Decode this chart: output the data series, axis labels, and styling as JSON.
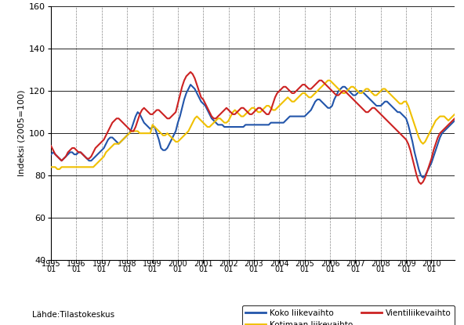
{
  "ylabel": "Indeksi (2005=100)",
  "source": "Lähde:Tilastokeskus",
  "ylim": [
    40,
    160
  ],
  "yticks": [
    40,
    60,
    80,
    100,
    120,
    140,
    160
  ],
  "colors_koko": "#2255aa",
  "colors_kotimaan": "#f0c000",
  "colors_vienti": "#cc2222",
  "linewidth": 1.5,
  "legend_koko": "Koko liikevaihto",
  "legend_kotimaan": "Kotimaan liikevaihto",
  "legend_vienti": "Vientiliikevaihto",
  "koko": [
    90,
    91,
    90,
    89,
    88,
    87,
    88,
    89,
    90,
    91,
    91,
    90,
    90,
    91,
    91,
    90,
    89,
    88,
    87,
    87,
    88,
    89,
    90,
    91,
    92,
    93,
    95,
    97,
    98,
    98,
    97,
    96,
    95,
    96,
    97,
    98,
    99,
    100,
    102,
    105,
    108,
    110,
    109,
    107,
    105,
    104,
    103,
    102,
    103,
    103,
    100,
    97,
    93,
    92,
    92,
    93,
    95,
    97,
    99,
    101,
    105,
    108,
    112,
    116,
    119,
    121,
    123,
    122,
    121,
    119,
    117,
    115,
    114,
    113,
    111,
    109,
    107,
    106,
    105,
    104,
    104,
    104,
    103,
    103,
    103,
    103,
    103,
    103,
    103,
    103,
    103,
    103,
    104,
    104,
    104,
    104,
    104,
    104,
    104,
    104,
    104,
    104,
    104,
    104,
    105,
    105,
    105,
    105,
    105,
    105,
    105,
    106,
    107,
    108,
    108,
    108,
    108,
    108,
    108,
    108,
    108,
    109,
    110,
    111,
    113,
    115,
    116,
    116,
    115,
    114,
    113,
    112,
    112,
    113,
    116,
    118,
    120,
    121,
    122,
    122,
    121,
    120,
    119,
    118,
    118,
    119,
    120,
    120,
    119,
    118,
    117,
    116,
    115,
    114,
    113,
    113,
    113,
    114,
    115,
    115,
    114,
    113,
    112,
    111,
    110,
    110,
    109,
    108,
    107,
    104,
    100,
    96,
    91,
    87,
    83,
    80,
    79,
    80,
    82,
    84,
    86,
    89,
    92,
    95,
    98,
    100,
    101,
    102,
    103,
    104,
    105,
    106
  ],
  "kotimaan": [
    84,
    84,
    84,
    83,
    83,
    84,
    84,
    84,
    84,
    84,
    84,
    84,
    84,
    84,
    84,
    84,
    84,
    84,
    84,
    84,
    84,
    85,
    86,
    87,
    88,
    89,
    91,
    92,
    93,
    94,
    95,
    95,
    95,
    96,
    97,
    98,
    99,
    100,
    101,
    101,
    101,
    101,
    100,
    100,
    100,
    100,
    100,
    100,
    104,
    103,
    102,
    101,
    100,
    99,
    99,
    100,
    99,
    98,
    97,
    96,
    96,
    97,
    98,
    99,
    100,
    101,
    103,
    105,
    107,
    108,
    107,
    106,
    105,
    104,
    103,
    103,
    104,
    105,
    106,
    107,
    107,
    106,
    105,
    105,
    106,
    108,
    110,
    111,
    110,
    109,
    108,
    108,
    109,
    110,
    111,
    112,
    112,
    111,
    110,
    110,
    111,
    112,
    113,
    113,
    112,
    111,
    111,
    112,
    113,
    114,
    115,
    116,
    117,
    116,
    115,
    115,
    116,
    117,
    118,
    119,
    119,
    118,
    117,
    117,
    118,
    119,
    120,
    121,
    122,
    123,
    124,
    125,
    125,
    124,
    123,
    122,
    121,
    120,
    119,
    119,
    120,
    121,
    122,
    122,
    121,
    120,
    119,
    119,
    120,
    121,
    121,
    120,
    119,
    118,
    118,
    119,
    120,
    121,
    121,
    120,
    119,
    118,
    117,
    116,
    115,
    114,
    114,
    115,
    115,
    113,
    110,
    107,
    104,
    101,
    98,
    96,
    95,
    96,
    98,
    100,
    102,
    104,
    106,
    107,
    108,
    108,
    108,
    107,
    106,
    107,
    108,
    109
  ],
  "vienti": [
    94,
    92,
    90,
    89,
    88,
    87,
    88,
    89,
    91,
    92,
    93,
    93,
    92,
    91,
    91,
    90,
    89,
    88,
    88,
    89,
    91,
    93,
    94,
    95,
    96,
    97,
    99,
    101,
    103,
    105,
    106,
    107,
    107,
    106,
    105,
    104,
    103,
    102,
    101,
    101,
    103,
    106,
    109,
    111,
    112,
    111,
    110,
    109,
    109,
    110,
    111,
    111,
    110,
    109,
    108,
    107,
    107,
    108,
    109,
    110,
    114,
    118,
    122,
    125,
    127,
    128,
    129,
    128,
    126,
    123,
    120,
    117,
    116,
    114,
    112,
    110,
    108,
    107,
    107,
    108,
    109,
    110,
    111,
    112,
    111,
    110,
    109,
    109,
    110,
    111,
    112,
    112,
    111,
    110,
    109,
    109,
    110,
    111,
    112,
    112,
    111,
    110,
    109,
    109,
    111,
    114,
    117,
    119,
    120,
    121,
    122,
    122,
    121,
    120,
    119,
    119,
    120,
    121,
    122,
    123,
    123,
    122,
    121,
    121,
    122,
    123,
    124,
    125,
    125,
    124,
    123,
    122,
    121,
    120,
    119,
    118,
    118,
    119,
    120,
    120,
    119,
    118,
    117,
    116,
    115,
    114,
    113,
    112,
    111,
    110,
    110,
    111,
    112,
    112,
    111,
    110,
    109,
    108,
    107,
    106,
    105,
    104,
    103,
    102,
    101,
    100,
    99,
    98,
    97,
    95,
    92,
    88,
    84,
    80,
    77,
    76,
    77,
    79,
    82,
    85,
    88,
    92,
    95,
    98,
    100,
    101,
    102,
    103,
    104,
    105,
    106,
    107
  ]
}
